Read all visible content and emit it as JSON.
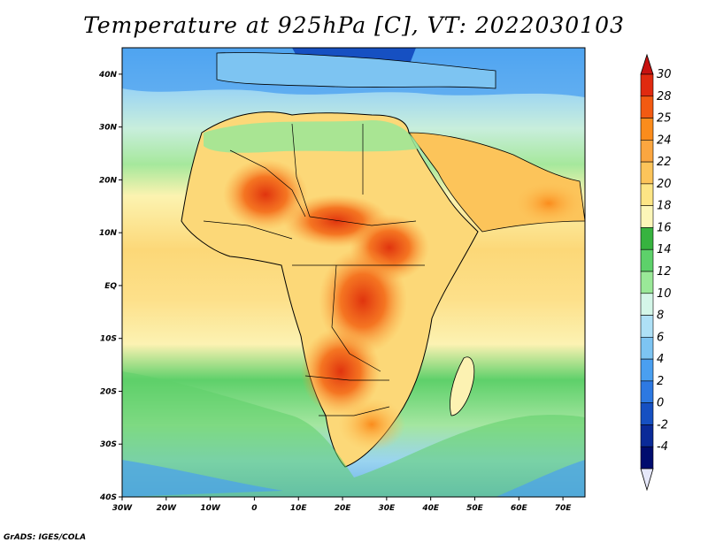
{
  "title": "Temperature at 925hPa [C], VT: 2022030103",
  "footer": "GrADS: IGES/COLA",
  "map": {
    "lon_range": [
      -30,
      75
    ],
    "lat_range": [
      -40,
      45
    ],
    "lon_ticks": [
      "30W",
      "20W",
      "10W",
      "0",
      "10E",
      "20E",
      "30E",
      "40E",
      "50E",
      "60E",
      "70E"
    ],
    "lat_ticks": [
      "40N",
      "30N",
      "20N",
      "10N",
      "EQ",
      "10S",
      "20S",
      "30S",
      "40S"
    ]
  },
  "colorbar": {
    "labels": [
      "30",
      "28",
      "25",
      "24",
      "22",
      "20",
      "18",
      "16",
      "14",
      "12",
      "10",
      "8",
      "6",
      "4",
      "2",
      "0",
      "-2",
      "-4"
    ],
    "colors": [
      "#e02a10",
      "#f25a12",
      "#fb8c1c",
      "#fba640",
      "#fcc45a",
      "#fde585",
      "#fcf6b8",
      "#37b33f",
      "#5dd16a",
      "#9ae898",
      "#d4f6e8",
      "#aee0f6",
      "#7dc4f2",
      "#4a9ff0",
      "#2d79e2",
      "#1650c2",
      "#0a2a98",
      "#000c6e"
    ],
    "top_arrow": "#c81210",
    "bottom_arrow": "#e6e8fa"
  }
}
